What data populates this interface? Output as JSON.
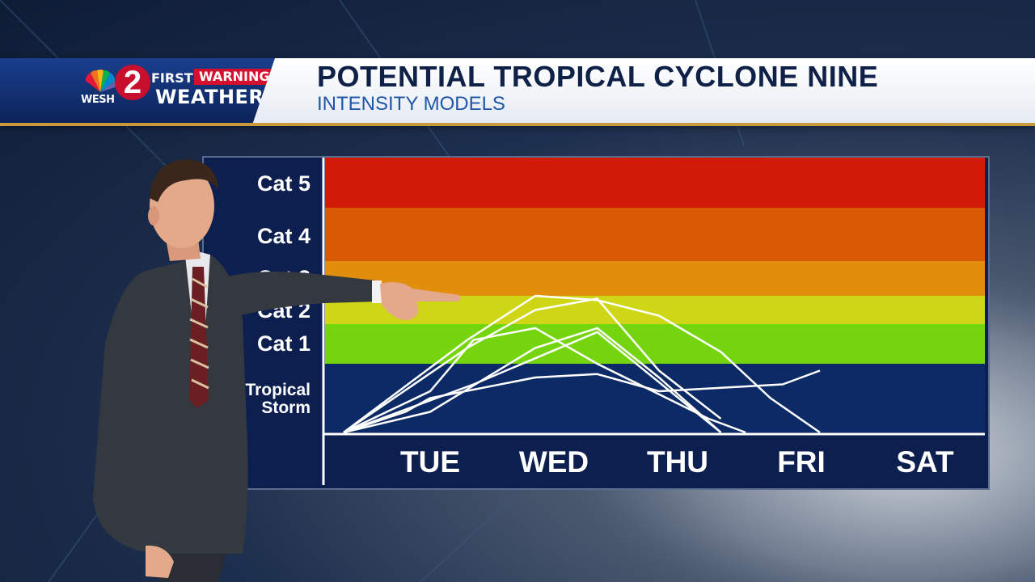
{
  "header": {
    "station": "WESH",
    "channel_number": "2",
    "brand_first": "FIRST",
    "brand_warning": "WARNING",
    "brand_weather": "WEATHER",
    "title": "POTENTIAL TROPICAL CYCLONE NINE",
    "subtitle": "INTENSITY MODELS"
  },
  "colors": {
    "cat5": "#d21a08",
    "cat4": "#d95a05",
    "cat3": "#e18e0c",
    "cat2": "#cfd616",
    "cat1": "#74d40d",
    "tropical_storm": "#0c2a66",
    "below": "#0a2358",
    "model_line": "#ffffff",
    "brand_red": "#d5102e",
    "header_navy": "#0f2147"
  },
  "chart_data": {
    "type": "line",
    "x": [
      "TUE",
      "WED",
      "THU",
      "FRI",
      "SAT"
    ],
    "y_categories": [
      "Tropical Storm",
      "Cat 1",
      "Cat 2",
      "Cat 3",
      "Cat 4",
      "Cat 5"
    ],
    "grid": false,
    "legend": "none",
    "series": [
      {
        "values": [
          [
            -0.7,
            0.0
          ],
          [
            0.3,
            1.6
          ],
          [
            0.85,
            3.0
          ],
          [
            1.35,
            2.85
          ],
          [
            1.85,
            2.3
          ],
          [
            2.35,
            1.3
          ],
          [
            2.75,
            0.5
          ],
          [
            3.15,
            0.0
          ]
        ]
      },
      {
        "values": [
          [
            -0.7,
            0.0
          ],
          [
            0.3,
            1.4
          ],
          [
            0.85,
            2.5
          ],
          [
            1.35,
            2.9
          ],
          [
            1.85,
            0.9
          ],
          [
            2.35,
            0.2
          ]
        ]
      },
      {
        "values": [
          [
            -0.7,
            0.0
          ],
          [
            0.0,
            0.6
          ],
          [
            0.35,
            1.6
          ],
          [
            0.85,
            1.9
          ],
          [
            1.35,
            1.0
          ],
          [
            2.25,
            0.2
          ],
          [
            2.55,
            0.0
          ]
        ]
      },
      {
        "values": [
          [
            -0.7,
            0.0
          ],
          [
            0.0,
            0.3
          ],
          [
            0.85,
            1.4
          ],
          [
            1.35,
            1.9
          ],
          [
            1.85,
            0.8
          ],
          [
            2.35,
            0.0
          ]
        ]
      },
      {
        "values": [
          [
            -0.7,
            0.0
          ],
          [
            -0.2,
            0.3
          ],
          [
            0.0,
            0.5
          ],
          [
            0.85,
            0.8
          ],
          [
            1.35,
            0.85
          ],
          [
            1.85,
            0.6
          ],
          [
            2.35,
            0.65
          ],
          [
            2.85,
            0.7
          ],
          [
            3.15,
            0.9
          ]
        ]
      },
      {
        "values": [
          [
            -0.7,
            0.0
          ],
          [
            0.35,
            0.7
          ],
          [
            1.35,
            1.8
          ],
          [
            2.35,
            0.0
          ]
        ]
      }
    ]
  },
  "labels": {
    "cat5": "Cat 5",
    "cat4": "Cat 4",
    "cat3": "Cat 3",
    "cat2": "Cat 2",
    "cat1": "Cat 1",
    "ts_line1": "Tropical",
    "ts_line2": "Storm"
  }
}
